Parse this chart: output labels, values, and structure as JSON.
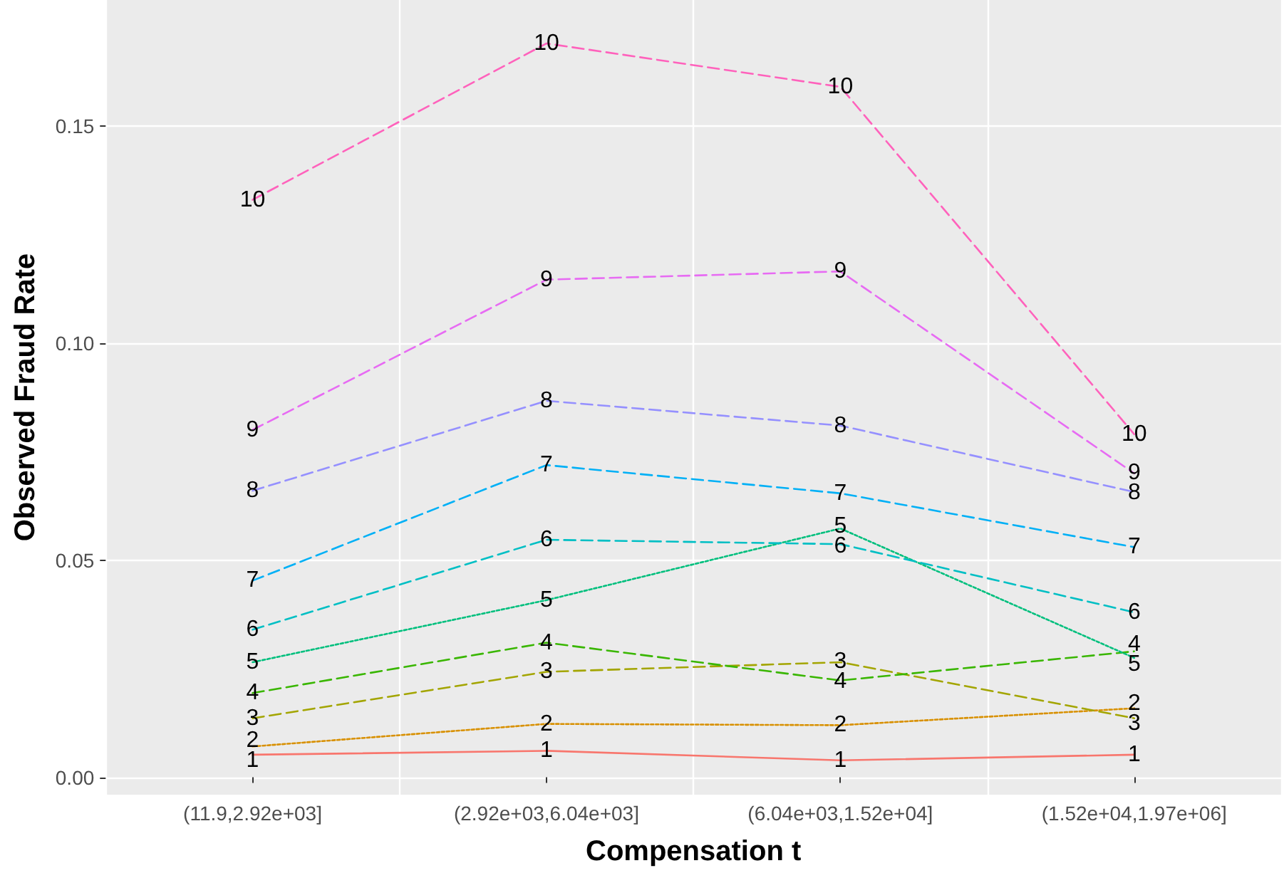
{
  "chart_data": {
    "type": "line",
    "xlabel": "Compensation t",
    "ylabel": "Observed Fraud Rate",
    "categories": [
      "(11.9,2.92e+03]",
      "(2.92e+03,6.04e+03]",
      "(6.04e+03,1.52e+04]",
      "(1.52e+04,1.97e+06]"
    ],
    "ylim": [
      -0.004,
      0.179
    ],
    "yticks": [
      {
        "value": 0,
        "label": "0.00"
      },
      {
        "value": 0.05,
        "label": "0.05"
      },
      {
        "value": 0.1,
        "label": "0.10"
      },
      {
        "value": 0.15,
        "label": "0.15"
      }
    ],
    "grid": true,
    "series": [
      {
        "name": "1",
        "color": "#f8766d",
        "line_style": "solid",
        "values": [
          0.0052,
          0.0061,
          0.0039,
          0.0052
        ]
      },
      {
        "name": "2",
        "color": "#d89000",
        "line_style": "dotted",
        "values": [
          0.0071,
          0.0123,
          0.012,
          0.0159
        ]
      },
      {
        "name": "3",
        "color": "#a3a500",
        "line_style": "dashed",
        "values": [
          0.0136,
          0.0243,
          0.0265,
          0.0136
        ]
      },
      {
        "name": "4",
        "color": "#39b600",
        "line_style": "dashed",
        "values": [
          0.0194,
          0.031,
          0.0223,
          0.029
        ]
      },
      {
        "name": "5",
        "color": "#00bf7d",
        "line_style": "dotted",
        "values": [
          0.0265,
          0.0408,
          0.0573,
          0.0275
        ]
      },
      {
        "name": "6",
        "color": "#00bfc4",
        "line_style": "dashed",
        "values": [
          0.034,
          0.0547,
          0.0537,
          0.038
        ]
      },
      {
        "name": "7",
        "color": "#00b0f6",
        "line_style": "dashed",
        "values": [
          0.0453,
          0.0719,
          0.0654,
          0.053
        ]
      },
      {
        "name": "8",
        "color": "#9590ff",
        "line_style": "dashed",
        "values": [
          0.066,
          0.0867,
          0.081,
          0.0657
        ]
      },
      {
        "name": "9",
        "color": "#e76bf3",
        "line_style": "dashed",
        "values": [
          0.08,
          0.1146,
          0.1165,
          0.07
        ]
      },
      {
        "name": "10",
        "color": "#ff62bc",
        "line_style": "dashed",
        "values": [
          0.133,
          0.169,
          0.159,
          0.079
        ]
      }
    ]
  }
}
